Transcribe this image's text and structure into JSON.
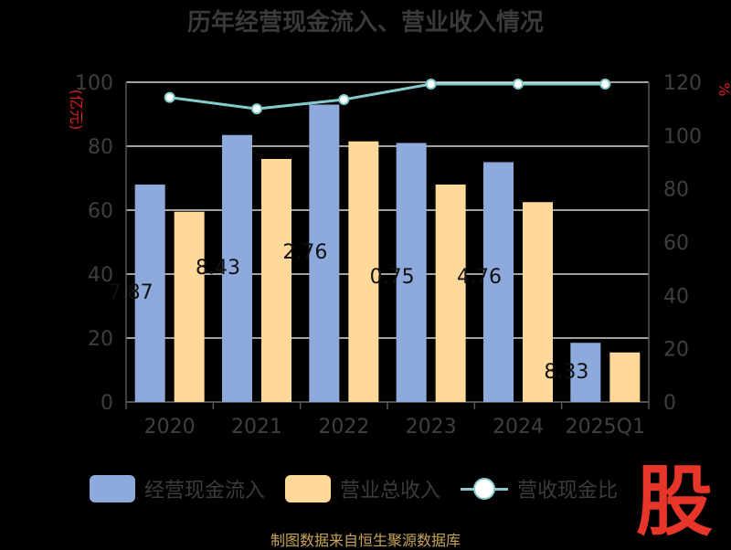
{
  "title": "历年经营现金流入、营业收入情况",
  "source": "制图数据来自恒生聚源数据库",
  "logo_text": "股",
  "colors": {
    "background": "#000000",
    "series_cash": "#8eaadc",
    "series_revenue": "#ffd89a",
    "series_ratio": "#86cbcb",
    "unit_label": "#d91e1e",
    "axis_text": "#3f3f3f",
    "grid": "#ffffff",
    "logo": "#e8352a"
  },
  "legend": [
    {
      "name": "经营现金流入",
      "type": "bar-cash"
    },
    {
      "name": "营业总收入",
      "type": "bar-revenue"
    },
    {
      "name": "营收现金比",
      "type": "line"
    }
  ],
  "chart_data": {
    "type": "bar",
    "categories": [
      "2020",
      "2021",
      "2022",
      "2023",
      "2024",
      "2025Q1"
    ],
    "series": [
      {
        "name": "经营现金流入",
        "values": [
          68,
          83.5,
          93,
          81,
          75,
          18.5
        ],
        "axis": "left"
      },
      {
        "name": "营业总收入",
        "values": [
          59.5,
          76,
          81.5,
          68,
          62.5,
          15.5
        ],
        "axis": "left"
      },
      {
        "name": "营收现金比",
        "type": "line",
        "values": [
          114.3,
          110,
          113.5,
          119.3,
          119.3,
          119.3
        ],
        "axis": "right"
      }
    ],
    "data_labels": [
      "7.87",
      "8.43",
      "2.76",
      "0.75",
      "4.76",
      "8.33"
    ],
    "y_left": {
      "label": "亿元",
      "ylim": [
        0,
        100
      ],
      "ticks": [
        0,
        20,
        40,
        60,
        80,
        100
      ]
    },
    "y_right": {
      "label": "%",
      "ylim": [
        0,
        120
      ],
      "ticks": [
        0,
        20,
        40,
        60,
        80,
        100,
        120
      ]
    },
    "grid": true,
    "legend_position": "bottom"
  }
}
